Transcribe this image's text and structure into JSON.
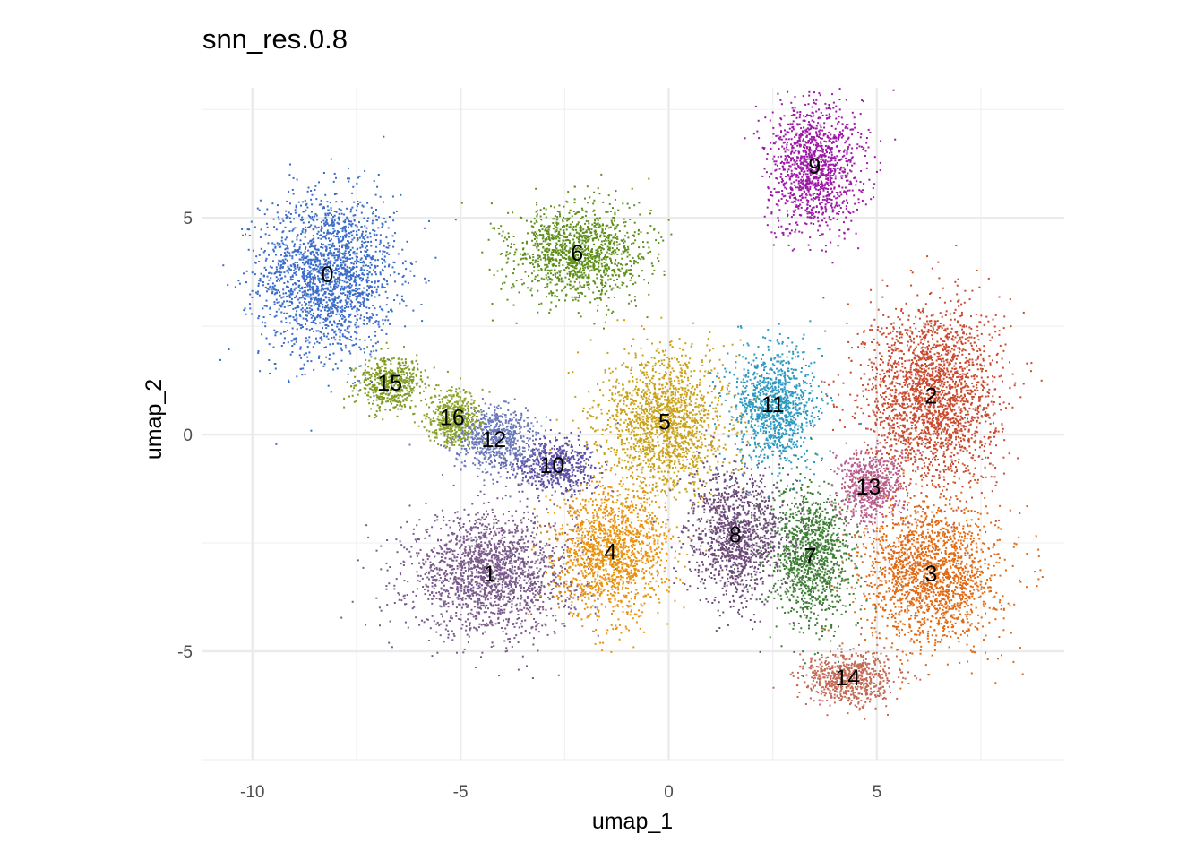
{
  "chart_data": {
    "type": "scatter",
    "title": "snn_res.0.8",
    "xlabel": "umap_1",
    "ylabel": "umap_2",
    "xlim": [
      -11.2,
      9.5
    ],
    "ylim": [
      -7.5,
      8.0
    ],
    "xticks": [
      -10,
      -5,
      0,
      5
    ],
    "yticks": [
      -5,
      0,
      5
    ],
    "grid": true,
    "legend": "none",
    "clusters": [
      {
        "label": "0",
        "color": "#3a6cc9",
        "cx": -8.2,
        "cy": 3.7,
        "sx": 1.3,
        "sy": 1.5
      },
      {
        "label": "1",
        "color": "#7a5a8a",
        "cx": -4.3,
        "cy": -3.2,
        "sx": 1.6,
        "sy": 1.1
      },
      {
        "label": "2",
        "color": "#c84a2f",
        "cx": 6.3,
        "cy": 0.9,
        "sx": 1.3,
        "sy": 1.7
      },
      {
        "label": "3",
        "color": "#e06a14",
        "cx": 6.3,
        "cy": -3.2,
        "sx": 1.3,
        "sy": 1.3
      },
      {
        "label": "4",
        "color": "#e8920e",
        "cx": -1.4,
        "cy": -2.7,
        "sx": 1.1,
        "sy": 1.2
      },
      {
        "label": "5",
        "color": "#c9a21a",
        "cx": -0.1,
        "cy": 0.3,
        "sx": 1.2,
        "sy": 1.3
      },
      {
        "label": "6",
        "color": "#5f8f1c",
        "cx": -2.2,
        "cy": 4.2,
        "sx": 1.3,
        "sy": 0.9
      },
      {
        "label": "7",
        "color": "#3e7d35",
        "cx": 3.4,
        "cy": -2.8,
        "sx": 0.8,
        "sy": 1.3
      },
      {
        "label": "8",
        "color": "#6b4a78",
        "cx": 1.6,
        "cy": -2.3,
        "sx": 0.9,
        "sy": 1.2
      },
      {
        "label": "9",
        "color": "#9c1aa6",
        "cx": 3.5,
        "cy": 6.2,
        "sx": 0.9,
        "sy": 1.2
      },
      {
        "label": "10",
        "color": "#5c4fa3",
        "cx": -2.8,
        "cy": -0.7,
        "sx": 0.8,
        "sy": 0.5
      },
      {
        "label": "11",
        "color": "#2a98bf",
        "cx": 2.5,
        "cy": 0.7,
        "sx": 0.8,
        "sy": 1.1
      },
      {
        "label": "12",
        "color": "#6a78b8",
        "cx": -4.2,
        "cy": -0.1,
        "sx": 0.8,
        "sy": 0.6
      },
      {
        "label": "13",
        "color": "#b75c8e",
        "cx": 4.8,
        "cy": -1.2,
        "sx": 0.6,
        "sy": 0.7
      },
      {
        "label": "14",
        "color": "#c26a55",
        "cx": 4.3,
        "cy": -5.6,
        "sx": 0.9,
        "sy": 0.5
      },
      {
        "label": "15",
        "color": "#7f9a22",
        "cx": -6.7,
        "cy": 1.2,
        "sx": 0.6,
        "sy": 0.5
      },
      {
        "label": "16",
        "color": "#8aa12a",
        "cx": -5.2,
        "cy": 0.4,
        "sx": 0.5,
        "sy": 0.5
      }
    ]
  }
}
